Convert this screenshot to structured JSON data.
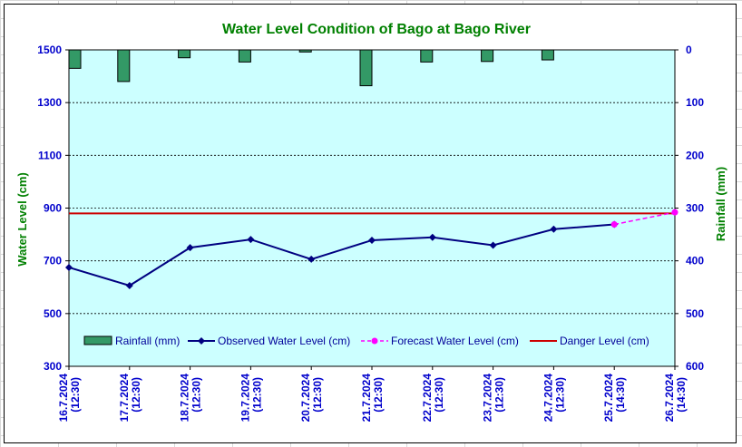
{
  "chart_data": {
    "type": "line",
    "title": "Water Level Condition of Bago at Bago River",
    "ylabel_left": "Water Level (cm)",
    "ylabel_right": "Rainfall (mm)",
    "ylim_left": [
      300,
      1500
    ],
    "yticks_left": [
      "300",
      "500",
      "700",
      "900",
      "1100",
      "1300",
      "1500"
    ],
    "ylim_right_inverted": [
      0,
      600
    ],
    "yticks_right": [
      "0",
      "100",
      "200",
      "300",
      "400",
      "500",
      "600"
    ],
    "categories": [
      [
        "16.7.2024",
        "(12:30)"
      ],
      [
        "17.7.2024",
        "(12:30)"
      ],
      [
        "18.7.2024",
        "(12:30)"
      ],
      [
        "19.7.2024",
        "(12:30)"
      ],
      [
        "20.7.2024",
        "(12:30)"
      ],
      [
        "21.7.2024",
        "(12:30)"
      ],
      [
        "22.7.2024",
        "(12:30)"
      ],
      [
        "23.7.2024",
        "(12:30)"
      ],
      [
        "24.7.2024",
        "(12:30)"
      ],
      [
        "25.7.2024",
        "(14:30)"
      ],
      [
        "26.7.2024",
        "(14:30)"
      ]
    ],
    "rainfall": [
      35,
      60,
      15,
      23,
      4,
      68,
      23,
      22,
      19
    ],
    "observed": [
      675,
      606,
      750,
      781,
      706,
      778,
      789,
      759,
      820,
      838
    ],
    "forecast_x_index": [
      9,
      10
    ],
    "forecast": [
      838,
      884
    ],
    "danger_level": 880,
    "legend": [
      {
        "label": "Rainfall (mm)"
      },
      {
        "label": "Observed Water Level (cm)"
      },
      {
        "label": "Forecast Water Level (cm)"
      },
      {
        "label": "Danger Level (cm)"
      }
    ],
    "colors": {
      "plot_bg": "#ccffff",
      "rain": "#339966",
      "observed": "#000080",
      "forecast": "#ff00ff",
      "danger": "#cc0000",
      "title": "#008000",
      "ticks": "#0000cc"
    },
    "grid": true,
    "legend_position": "bottom-inside"
  }
}
